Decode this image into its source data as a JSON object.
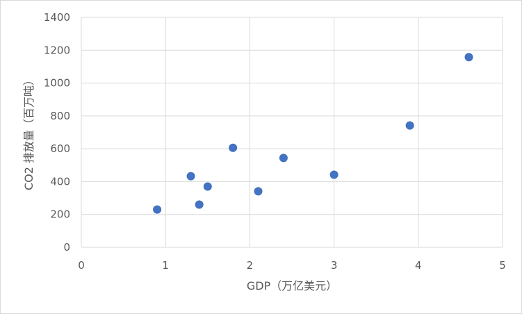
{
  "chart_data": {
    "type": "scatter",
    "title": "",
    "xlabel": "GDP（万亿美元）",
    "ylabel": "CO2 排放量（百万吨）",
    "xlim": [
      0,
      5
    ],
    "ylim": [
      0,
      1400
    ],
    "xticks": [
      0,
      1,
      2,
      3,
      4,
      5
    ],
    "yticks": [
      0,
      200,
      400,
      600,
      800,
      1000,
      1200,
      1400
    ],
    "grid": true,
    "legend": "none",
    "series": [
      {
        "color": "#4472c4",
        "points": [
          {
            "x": 0.9,
            "y": 230
          },
          {
            "x": 1.3,
            "y": 433
          },
          {
            "x": 1.4,
            "y": 260
          },
          {
            "x": 1.5,
            "y": 370
          },
          {
            "x": 1.8,
            "y": 606
          },
          {
            "x": 2.1,
            "y": 341
          },
          {
            "x": 2.4,
            "y": 544
          },
          {
            "x": 3.0,
            "y": 442
          },
          {
            "x": 3.9,
            "y": 742
          },
          {
            "x": 4.6,
            "y": 1158
          }
        ]
      }
    ]
  }
}
